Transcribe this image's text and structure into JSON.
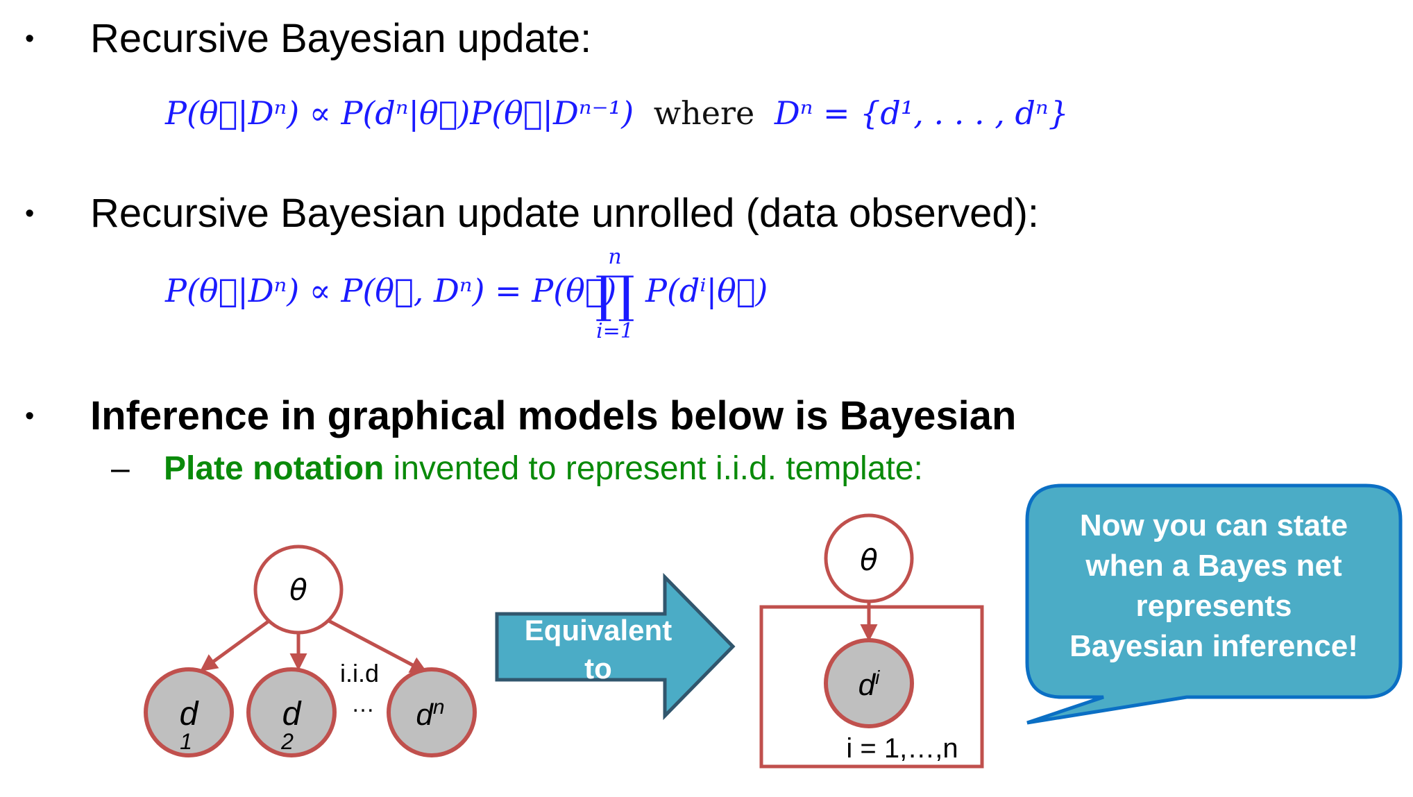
{
  "bullets": [
    {
      "marker": "•",
      "text": "Recursive Bayesian update:"
    },
    {
      "marker": "•",
      "text": "Recursive Bayesian update unrolled (data observed):"
    },
    {
      "marker": "•",
      "text": "Inference in graphical models below is Bayesian"
    }
  ],
  "sub_bullet": {
    "marker": "–",
    "bold": "Plate notation",
    "rest": " invented to represent i.i.d. template:"
  },
  "eq1": {
    "lhs": "P(θ⃗|Dⁿ) ∝ P(dⁿ|θ⃗)P(θ⃗|Dⁿ⁻¹)",
    "where": "where",
    "rhs": "Dⁿ = {d¹, . . . , dⁿ}"
  },
  "eq2": {
    "lhs": "P(θ⃗|Dⁿ) ∝ P(θ⃗, Dⁿ) = P(θ⃗)",
    "prod_top": "n",
    "prod_sym": "∏",
    "prod_bottom": "i=1",
    "rhs": "P(dⁱ|θ⃗)"
  },
  "left_graph": {
    "theta": "θ",
    "d1": "d",
    "d1_sub": "1",
    "d2": "d",
    "d2_sub": "2",
    "dn": "d",
    "dn_sup": "n",
    "iid": "i.i.d",
    "dots": "…"
  },
  "arrow_label": [
    "Equivalent",
    "to"
  ],
  "plate": {
    "theta": "θ",
    "di": "d",
    "di_sup": "i",
    "range": "i = 1,…,n"
  },
  "callout": [
    "Now you can state",
    "when a Bayes net",
    "represents",
    "Bayesian inference!"
  ],
  "colors": {
    "node_border": "#c0504d",
    "data_fill": "#bfbfbf",
    "arrow_fill": "#4bacc6",
    "arrow_border": "#31566d",
    "callout_fill": "#4bacc6",
    "callout_border": "#0b6fc4",
    "math": "#1a1aff",
    "sub_text": "#0a8a0a"
  }
}
